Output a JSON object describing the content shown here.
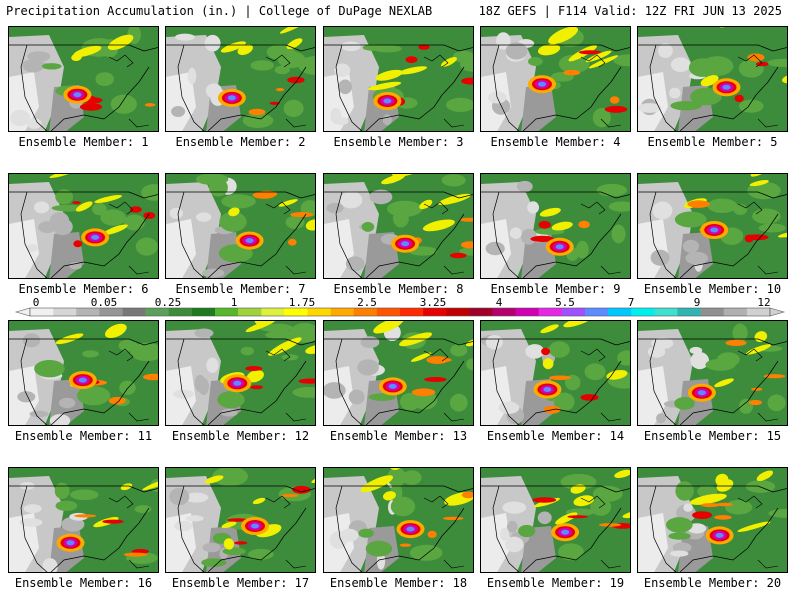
{
  "header": {
    "title_left": "Precipitation Accumulation (in.) | College of DuPage NEXLAB",
    "title_right": "18Z GEFS | F114 Valid: 12Z FRI JUN 13 2025"
  },
  "members": [
    {
      "label": "Ensemble Member: 1"
    },
    {
      "label": "Ensemble Member: 2"
    },
    {
      "label": "Ensemble Member: 3"
    },
    {
      "label": "Ensemble Member: 4"
    },
    {
      "label": "Ensemble Member: 5"
    },
    {
      "label": "Ensemble Member: 6"
    },
    {
      "label": "Ensemble Member: 7"
    },
    {
      "label": "Ensemble Member: 8"
    },
    {
      "label": "Ensemble Member: 9"
    },
    {
      "label": "Ensemble Member: 10"
    },
    {
      "label": "Ensemble Member: 11"
    },
    {
      "label": "Ensemble Member: 12"
    },
    {
      "label": "Ensemble Member: 13"
    },
    {
      "label": "Ensemble Member: 14"
    },
    {
      "label": "Ensemble Member: 15"
    },
    {
      "label": "Ensemble Member: 16"
    },
    {
      "label": "Ensemble Member: 17"
    },
    {
      "label": "Ensemble Member: 18"
    },
    {
      "label": "Ensemble Member: 19"
    },
    {
      "label": "Ensemble Member: 20"
    }
  ],
  "colorbar": {
    "tick_labels": [
      "0",
      "0.05",
      "0.25",
      "1",
      "1.75",
      "2.5",
      "3.25",
      "4",
      "5.5",
      "7",
      "9",
      "12"
    ],
    "colors": [
      "#f0f0f0",
      "#d6d6d6",
      "#b4b4b4",
      "#969696",
      "#787878",
      "#5aa05a",
      "#3c8c3c",
      "#1e7a1e",
      "#55b82a",
      "#a0d23c",
      "#dcf03c",
      "#ffff00",
      "#ffd700",
      "#ffaa00",
      "#ff8000",
      "#ff5500",
      "#ff2a00",
      "#e60000",
      "#c00000",
      "#a00028",
      "#b4006e",
      "#d200b4",
      "#e628e6",
      "#a050ff",
      "#5a8cff",
      "#00c8ff",
      "#00f0f0",
      "#40e0d0",
      "#30b4b4",
      "#909090",
      "#b0b0b0",
      "#d0d0d0"
    ]
  }
}
